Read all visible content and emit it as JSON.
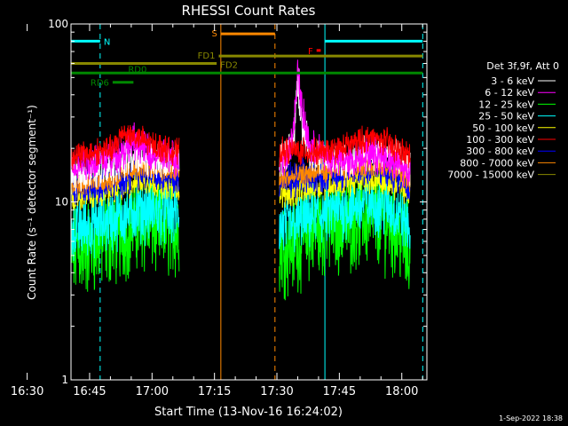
{
  "chart_data": {
    "type": "line",
    "title": "RHESSI Count Rates",
    "xlabel": "Start Time (13-Nov-16 16:24:02)",
    "ylabel": "Count Rate (s⁻¹ detector segment⁻¹)",
    "yscale": "log",
    "ylim": [
      1,
      100
    ],
    "xlim_minutes": [
      16.5,
      102
    ],
    "x_unit": "minutes after 16:24:02",
    "x_ticks": [
      {
        "label": "16:30",
        "t": 5.97
      },
      {
        "label": "16:45",
        "t": 20.97
      },
      {
        "label": "17:00",
        "t": 35.97
      },
      {
        "label": "17:15",
        "t": 50.97
      },
      {
        "label": "17:30",
        "t": 65.97
      },
      {
        "label": "17:45",
        "t": 80.97
      },
      {
        "label": "18:00",
        "t": 95.97
      }
    ],
    "y_ticks": [
      {
        "label": "1",
        "v": 1
      },
      {
        "label": "10",
        "v": 10
      },
      {
        "label": "100",
        "v": 100
      }
    ],
    "legend": {
      "header": "Det 3f,9f, Att 0",
      "position": "right"
    },
    "series": [
      {
        "name": "3 - 6 keV",
        "color": "#ffffff",
        "t": [
          16.5,
          22,
          27,
          32,
          36,
          39,
          41,
          42.5,
          66.5,
          68,
          70,
          71,
          72,
          74,
          78,
          84,
          88,
          92,
          96,
          98
        ],
        "values": [
          14,
          15,
          16,
          18,
          17,
          17,
          17,
          17,
          17,
          18,
          22,
          48,
          28,
          19,
          17,
          17,
          19,
          19,
          17,
          15
        ]
      },
      {
        "name": "6 - 12 keV",
        "color": "#ff00ff",
        "t": [
          16.5,
          22,
          27,
          32,
          36,
          39,
          41,
          42.5,
          66.5,
          68,
          70,
          71,
          72,
          74,
          78,
          84,
          88,
          92,
          96,
          98
        ],
        "values": [
          16,
          17,
          18,
          22,
          18,
          18,
          18,
          17,
          17,
          18,
          24,
          58,
          32,
          20,
          18,
          17,
          19,
          18,
          16,
          14
        ]
      },
      {
        "name": "12 - 25 keV",
        "color": "#00ff00",
        "t": [
          16.5,
          22,
          27,
          32,
          36,
          39,
          41,
          42.5,
          66.5,
          70,
          74,
          78,
          84,
          88,
          92,
          96,
          98
        ],
        "values": [
          5.2,
          5.8,
          6.4,
          7.6,
          7.5,
          7.2,
          7.0,
          7.0,
          5.6,
          5.9,
          6.8,
          7.2,
          7.9,
          8.4,
          7.8,
          6.5,
          4.8
        ]
      },
      {
        "name": "25 - 50 keV",
        "color": "#00ffff",
        "t": [
          16.5,
          22,
          27,
          32,
          36,
          39,
          41,
          42.5,
          66.5,
          70,
          74,
          78,
          84,
          88,
          92,
          96,
          98
        ],
        "values": [
          7.0,
          7.5,
          8.0,
          9.0,
          9.0,
          8.8,
          8.6,
          8.5,
          7.2,
          7.5,
          8.3,
          8.8,
          9.5,
          10.0,
          9.6,
          8.4,
          7.0
        ]
      },
      {
        "name": "50 - 100 keV",
        "color": "#ffff00",
        "t": [
          16.5,
          22,
          27,
          32,
          36,
          39,
          41,
          42.5,
          66.5,
          70,
          74,
          78,
          84,
          88,
          92,
          96,
          98
        ],
        "values": [
          10.5,
          11,
          11.5,
          13,
          13,
          12.5,
          12,
          12,
          11,
          11.2,
          12,
          12.5,
          13,
          13.5,
          13,
          12,
          11
        ]
      },
      {
        "name": "100 - 300 keV",
        "color": "#ff0000",
        "t": [
          16.5,
          22,
          27,
          29,
          32,
          36,
          39,
          41,
          42.5,
          66.5,
          70,
          74,
          78,
          84,
          88,
          92,
          96,
          98
        ],
        "values": [
          18,
          19,
          20,
          25,
          23,
          21,
          20,
          19,
          19,
          19,
          19.5,
          19,
          19,
          21,
          23,
          22,
          19,
          18
        ]
      },
      {
        "name": "300 - 800 keV",
        "color": "#0000ff",
        "t": [
          16.5,
          22,
          27,
          32,
          36,
          39,
          41,
          42.5,
          66.5,
          70,
          74,
          78,
          84,
          88,
          92,
          96,
          98
        ],
        "values": [
          12,
          12.5,
          13,
          15,
          15,
          14.5,
          14,
          14,
          13,
          13.2,
          14,
          14.5,
          15,
          15.5,
          15,
          14,
          12.5
        ]
      },
      {
        "name": "800 - 7000 keV",
        "color": "#ff8800",
        "t": [
          16.5,
          22,
          27,
          32,
          36,
          39,
          41,
          42.5,
          66.5,
          70,
          74,
          78,
          84,
          88,
          92,
          96,
          98
        ],
        "values": [
          12.5,
          13,
          13.5,
          15.5,
          15.5,
          15,
          14.5,
          14.5,
          13.5,
          13.7,
          14.5,
          15,
          15.5,
          16,
          15.5,
          14.5,
          13
        ]
      },
      {
        "name": "7000 - 15000 keV",
        "color": "#888800",
        "t": [],
        "values": []
      }
    ],
    "gaps": [
      [
        42.5,
        66.5
      ]
    ],
    "noise": {
      "6 - 12 keV": 0.08,
      "3 - 6 keV": 0.08,
      "12 - 25 keV": 0.22,
      "25 - 50 keV": 0.14,
      "50 - 100 keV": 0.06,
      "100 - 300 keV": 0.06,
      "300 - 800 keV": 0.08,
      "800 - 7000 keV": 0.05
    },
    "flag_bars": [
      {
        "label": "N",
        "color": "#00ffff",
        "t_start": 16.5,
        "t_end": 23.5,
        "y_value": 80,
        "label_at": "end"
      },
      {
        "label": "N",
        "color": "#00ffff",
        "t_start": 77.5,
        "t_end": 101,
        "y_value": 80,
        "label_at": "none"
      },
      {
        "label": "S",
        "color": "#ff8800",
        "t_start": 52.5,
        "t_end": 65.5,
        "y_value": 88,
        "label_at": "start"
      },
      {
        "label": "F",
        "color": "#ff0000",
        "t_start": 75.5,
        "t_end": 76.5,
        "y_value": 71,
        "label_at": "start"
      },
      {
        "label": "FD1",
        "color": "#888800",
        "t_start": 52,
        "t_end": 101,
        "y_value": 66,
        "label_at": "start"
      },
      {
        "label": "FD2",
        "color": "#888800",
        "t_start": 16.5,
        "t_end": 51.5,
        "y_value": 60,
        "label_at": "end"
      },
      {
        "label": "RD0",
        "color": "#008800",
        "t_start": 16.5,
        "t_end": 101,
        "y_value": 53,
        "label_at": "mid"
      },
      {
        "label": "RD6",
        "color": "#008800",
        "t_start": 26.5,
        "t_end": 31.5,
        "y_value": 47,
        "label_at": "start"
      }
    ],
    "vlines": [
      {
        "t": 16.5,
        "color": "#00ffff",
        "style": "solid"
      },
      {
        "t": 23.5,
        "color": "#00ffff",
        "style": "dashed"
      },
      {
        "t": 52.5,
        "color": "#ff8800",
        "style": "solid"
      },
      {
        "t": 65.5,
        "color": "#ff8800",
        "style": "dashed"
      },
      {
        "t": 77.5,
        "color": "#00ffff",
        "style": "solid"
      },
      {
        "t": 101,
        "color": "#00ffff",
        "style": "dashed"
      }
    ]
  },
  "footer": "1-Sep-2022 18:38"
}
